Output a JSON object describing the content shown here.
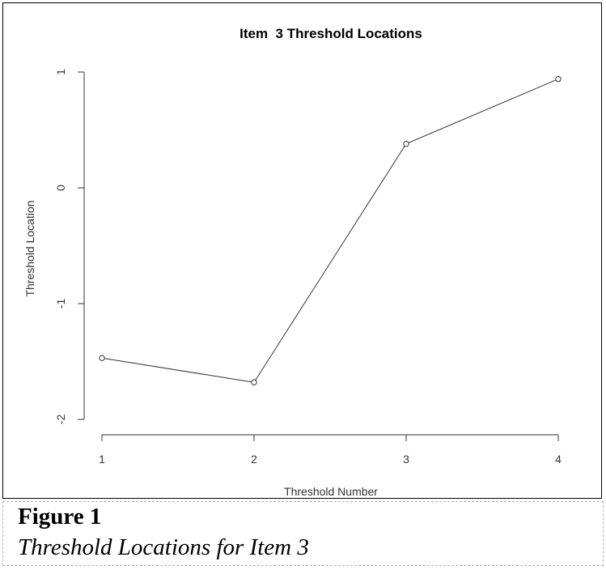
{
  "figure": {
    "label": "Figure 1",
    "caption": "Threshold Locations for Item 3"
  },
  "chart_data": {
    "type": "line",
    "title": "Item  3 Threshold Locations",
    "xlabel": "Threshold Number",
    "ylabel": "Threshold Location",
    "x": [
      1,
      2,
      3,
      4
    ],
    "y": [
      -1.47,
      -1.68,
      0.38,
      0.94
    ],
    "x_ticks": [
      "1",
      "2",
      "3",
      "4"
    ],
    "y_ticks": [
      "-2",
      "-1",
      "0",
      "1"
    ],
    "xlim": [
      1,
      4
    ],
    "ylim": [
      -2,
      1
    ],
    "grid": false,
    "marker": "open-circle",
    "line_color": "#333333"
  }
}
